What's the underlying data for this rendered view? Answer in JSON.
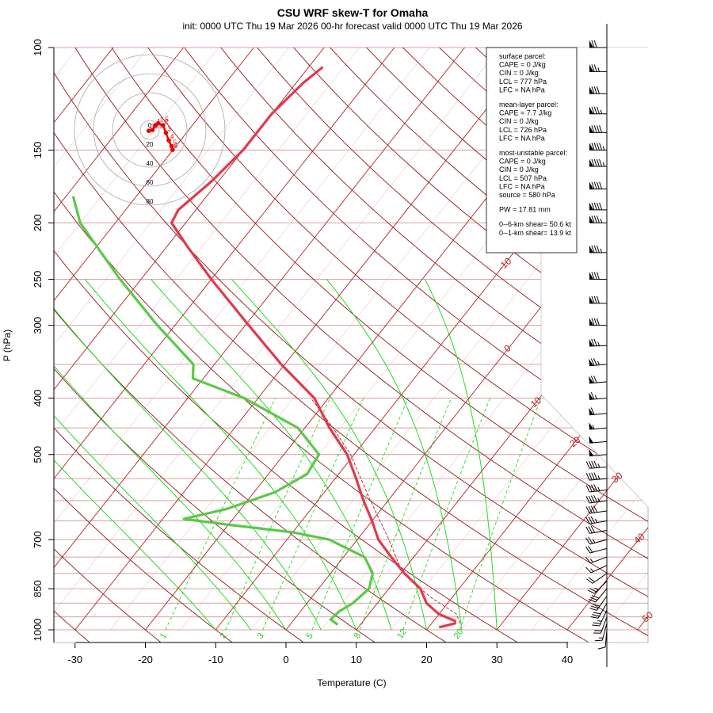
{
  "chart_data": {
    "type": "line",
    "title": "CSU WRF skew-T for Omaha",
    "subtitle": "init: 0000 UTC Thu 19 Mar 2026     00-hr forecast valid 0000 UTC Thu 19 Mar 2026",
    "xlabel": "Temperature (C)",
    "ylabel": "P (hPa)",
    "x_ticks": [
      -30,
      -20,
      -10,
      0,
      10,
      20,
      30,
      40
    ],
    "y_ticks": [
      100,
      150,
      200,
      250,
      300,
      400,
      500,
      700,
      850,
      1000
    ],
    "xlim": [
      -33.5,
      51
    ],
    "ylim": [
      1000,
      100
    ],
    "isotherm_labels": [
      -10,
      0,
      10,
      20,
      30,
      40,
      50
    ],
    "mixing_ratio_labels": [
      "1",
      "2",
      "3",
      "5",
      "8",
      "12",
      "20"
    ],
    "temperature_profile": [
      {
        "p": 990,
        "t": 21.5
      },
      {
        "p": 975,
        "t": 23.3
      },
      {
        "p": 965,
        "t": 23.0
      },
      {
        "p": 940,
        "t": 20.0
      },
      {
        "p": 900,
        "t": 17.0
      },
      {
        "p": 850,
        "t": 14.5
      },
      {
        "p": 800,
        "t": 10.5
      },
      {
        "p": 750,
        "t": 6.8
      },
      {
        "p": 700,
        "t": 3.0
      },
      {
        "p": 650,
        "t": 0.0
      },
      {
        "p": 600,
        "t": -3.5
      },
      {
        "p": 550,
        "t": -7.0
      },
      {
        "p": 500,
        "t": -11.0
      },
      {
        "p": 450,
        "t": -16.5
      },
      {
        "p": 400,
        "t": -22.0
      },
      {
        "p": 350,
        "t": -30.5
      },
      {
        "p": 300,
        "t": -39.5
      },
      {
        "p": 250,
        "t": -50.0
      },
      {
        "p": 220,
        "t": -57.0
      },
      {
        "p": 200,
        "t": -62.0
      },
      {
        "p": 190,
        "t": -62.5
      },
      {
        "p": 170,
        "t": -61.0
      },
      {
        "p": 150,
        "t": -60.0
      },
      {
        "p": 130,
        "t": -60.0
      },
      {
        "p": 115,
        "t": -59.0
      },
      {
        "p": 108,
        "t": -58.0
      }
    ],
    "dewpoint_profile": [
      {
        "p": 980,
        "t": 6.8
      },
      {
        "p": 960,
        "t": 5.2
      },
      {
        "p": 930,
        "t": 5.5
      },
      {
        "p": 900,
        "t": 6.5
      },
      {
        "p": 850,
        "t": 7.2
      },
      {
        "p": 800,
        "t": 6.0
      },
      {
        "p": 750,
        "t": 3.0
      },
      {
        "p": 700,
        "t": -4.0
      },
      {
        "p": 680,
        "t": -10.0
      },
      {
        "p": 660,
        "t": -20.0
      },
      {
        "p": 645,
        "t": -27.0
      },
      {
        "p": 620,
        "t": -22.0
      },
      {
        "p": 580,
        "t": -17.0
      },
      {
        "p": 540,
        "t": -14.5
      },
      {
        "p": 500,
        "t": -15.0
      },
      {
        "p": 450,
        "t": -21.0
      },
      {
        "p": 400,
        "t": -32.0
      },
      {
        "p": 370,
        "t": -41.5
      },
      {
        "p": 350,
        "t": -43.0
      },
      {
        "p": 300,
        "t": -52.5
      },
      {
        "p": 250,
        "t": -63.0
      },
      {
        "p": 200,
        "t": -75.0
      },
      {
        "p": 180,
        "t": -79.0
      }
    ],
    "parcel_profile": [
      {
        "p": 975,
        "t": 24.0
      },
      {
        "p": 940,
        "t": 22.5
      },
      {
        "p": 880,
        "t": 17.0
      },
      {
        "p": 820,
        "t": 12.0
      },
      {
        "p": 777,
        "t": 9.0
      },
      {
        "p": 700,
        "t": 4.5
      },
      {
        "p": 600,
        "t": -2.5
      },
      {
        "p": 500,
        "t": -10.5
      },
      {
        "p": 450,
        "t": -16.0
      },
      {
        "p": 400,
        "t": -22.5
      }
    ],
    "hodograph": {
      "ring_labels": [
        "0",
        "20",
        "40",
        "60",
        "80"
      ],
      "point_labels": [
        "0",
        "0.5",
        "1",
        "1.5",
        "2",
        "3",
        "4",
        "5",
        "6"
      ],
      "points": [
        {
          "u": -1,
          "v": -1
        },
        {
          "u": 3,
          "v": 0
        },
        {
          "u": 6,
          "v": 5
        },
        {
          "u": 9,
          "v": 7
        },
        {
          "u": 14,
          "v": 5
        },
        {
          "u": 17,
          "v": -3
        },
        {
          "u": 20,
          "v": -11
        },
        {
          "u": 23,
          "v": -17
        },
        {
          "u": 24,
          "v": -21
        }
      ]
    },
    "wind_barbs": [
      {
        "p": 1000,
        "dir": 185,
        "spd": 10
      },
      {
        "p": 975,
        "dir": 195,
        "spd": 15
      },
      {
        "p": 950,
        "dir": 200,
        "spd": 20
      },
      {
        "p": 925,
        "dir": 205,
        "spd": 25
      },
      {
        "p": 900,
        "dir": 210,
        "spd": 30
      },
      {
        "p": 875,
        "dir": 215,
        "spd": 30
      },
      {
        "p": 850,
        "dir": 220,
        "spd": 30
      },
      {
        "p": 825,
        "dir": 225,
        "spd": 25
      },
      {
        "p": 800,
        "dir": 235,
        "spd": 20
      },
      {
        "p": 775,
        "dir": 245,
        "spd": 15
      },
      {
        "p": 750,
        "dir": 250,
        "spd": 15
      },
      {
        "p": 725,
        "dir": 255,
        "spd": 20
      },
      {
        "p": 700,
        "dir": 255,
        "spd": 25
      },
      {
        "p": 675,
        "dir": 260,
        "spd": 30
      },
      {
        "p": 650,
        "dir": 260,
        "spd": 35
      },
      {
        "p": 625,
        "dir": 262,
        "spd": 40
      },
      {
        "p": 600,
        "dir": 262,
        "spd": 45
      },
      {
        "p": 575,
        "dir": 263,
        "spd": 45
      },
      {
        "p": 550,
        "dir": 265,
        "spd": 45
      },
      {
        "p": 525,
        "dir": 265,
        "spd": 45
      },
      {
        "p": 500,
        "dir": 265,
        "spd": 50
      },
      {
        "p": 475,
        "dir": 265,
        "spd": 50
      },
      {
        "p": 450,
        "dir": 265,
        "spd": 55
      },
      {
        "p": 425,
        "dir": 265,
        "spd": 60
      },
      {
        "p": 400,
        "dir": 265,
        "spd": 65
      },
      {
        "p": 375,
        "dir": 265,
        "spd": 70
      },
      {
        "p": 350,
        "dir": 265,
        "spd": 75
      },
      {
        "p": 325,
        "dir": 268,
        "spd": 75
      },
      {
        "p": 300,
        "dir": 270,
        "spd": 80
      },
      {
        "p": 275,
        "dir": 270,
        "spd": 80
      },
      {
        "p": 250,
        "dir": 270,
        "spd": 80
      },
      {
        "p": 225,
        "dir": 270,
        "spd": 85
      },
      {
        "p": 200,
        "dir": 270,
        "spd": 85
      },
      {
        "p": 190,
        "dir": 270,
        "spd": 90
      },
      {
        "p": 175,
        "dir": 270,
        "spd": 90
      },
      {
        "p": 160,
        "dir": 270,
        "spd": 95
      },
      {
        "p": 150,
        "dir": 270,
        "spd": 95
      },
      {
        "p": 140,
        "dir": 270,
        "spd": 90
      },
      {
        "p": 130,
        "dir": 270,
        "spd": 85
      },
      {
        "p": 120,
        "dir": 270,
        "spd": 80
      },
      {
        "p": 110,
        "dir": 270,
        "spd": 75
      },
      {
        "p": 100,
        "dir": 270,
        "spd": 70
      }
    ],
    "stats": [
      "surface parcel:",
      "CAPE = 0 J/kg",
      "CIN = 0 J/kg",
      "LCL = 777 hPa",
      "LFC = NA hPa",
      "",
      "mean-layer parcel:",
      "CAPE = 7.7 J/kg",
      "CIN = 0 J/kg",
      "LCL = 726 hPa",
      "LFC = NA hPa",
      "",
      "most-unstable parcel:",
      "CAPE = 0 J/kg",
      "CIN = 0 J/kg",
      "LCL = 507 hPa",
      "LFC = NA hPa",
      "source = 580 hPa",
      "",
      "PW =  17.81 mm",
      "",
      "0--6-km shear= 50.6 kt",
      "0--1-km shear= 13.9 kt"
    ],
    "colors": {
      "temperature": "#e03a4e",
      "dewpoint": "#5cc84a",
      "parcel": "#c0303a",
      "isotherm": "#b22222",
      "dry_adiabat": "#8b1a1a",
      "moist_adiabat": "#22dd22",
      "mixing_ratio": "#22dd22",
      "isobar": "#d9a0a0",
      "hodograph": "#ee0000"
    },
    "grid": true
  }
}
